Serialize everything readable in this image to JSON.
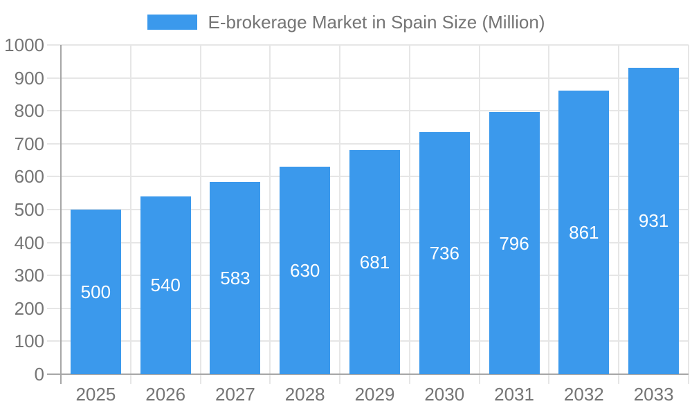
{
  "legend": {
    "series_label": "E-brokerage Market in Spain Size (Million)"
  },
  "chart_data": {
    "type": "bar",
    "title": "E-brokerage Market in Spain Size (Million)",
    "categories": [
      "2025",
      "2026",
      "2027",
      "2028",
      "2029",
      "2030",
      "2031",
      "2032",
      "2033"
    ],
    "values": [
      500,
      540,
      583,
      630,
      681,
      736,
      796,
      861,
      931
    ],
    "xlabel": "",
    "ylabel": "",
    "ylim": [
      0,
      1000
    ],
    "ytick_step": 100,
    "yticks": [
      "0",
      "100",
      "200",
      "300",
      "400",
      "500",
      "600",
      "700",
      "800",
      "900",
      "1000"
    ],
    "grid": true,
    "legend_position": "top",
    "bar_labels_inside": true,
    "colors": {
      "bar": "#3B99EC",
      "bar_label": "#FFFFFF",
      "axis_line": "#A6A6A6",
      "gridline": "#E6E6E6",
      "tick_text": "#757575",
      "background": "#FFFFFF"
    }
  }
}
